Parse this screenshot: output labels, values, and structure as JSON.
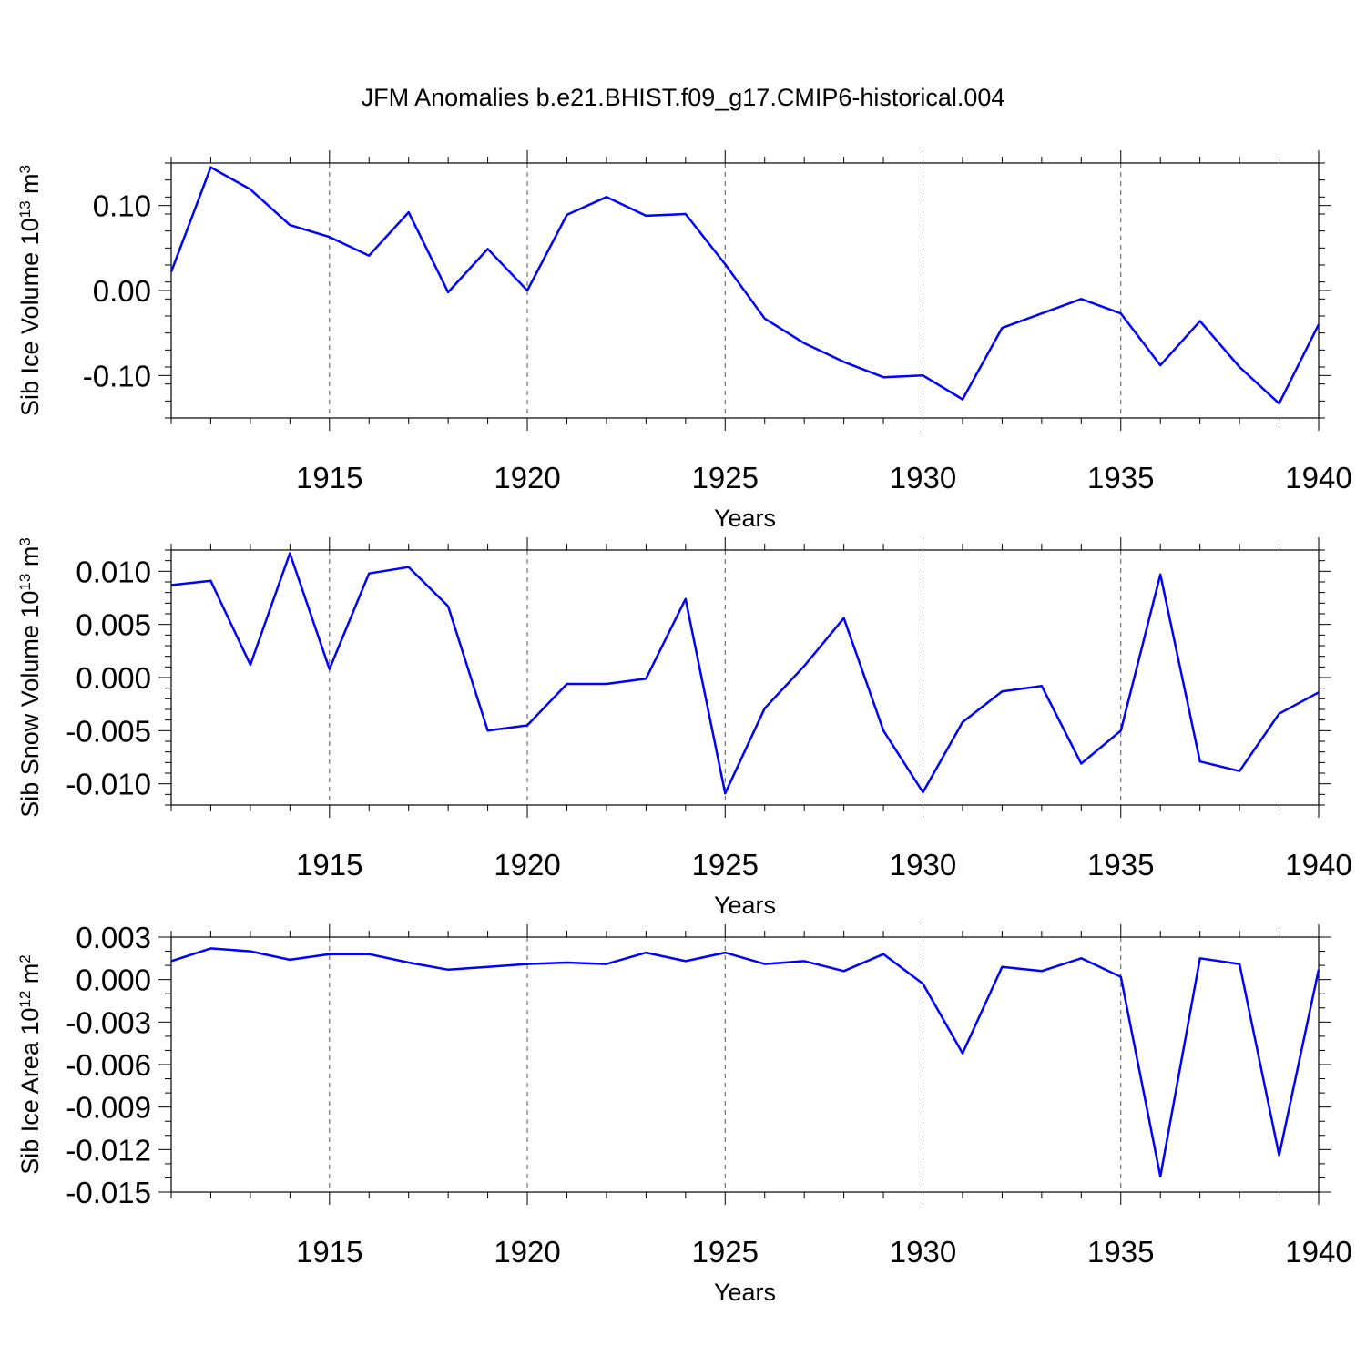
{
  "chart_data": {
    "title": "JFM Anomalies b.e21.BHIST.f09_g17.CMIP6-historical.004",
    "colors": {
      "line": "#0000ff",
      "frame": "#000000",
      "grid": "#555555"
    },
    "panels": [
      {
        "type": "line",
        "ylabel_main": "Sib Ice Volume 10",
        "ylabel_exp": "13",
        "ylabel_unit": " m",
        "ylabel_unit_exp": "3",
        "xlabel": "Years",
        "xlim": [
          1911,
          1940
        ],
        "ylim": [
          -0.15,
          0.15
        ],
        "yticks": [
          -0.1,
          0.0,
          0.1
        ],
        "ytick_labels": [
          "-0.10",
          "0.00",
          "0.10"
        ],
        "yminor_step": 0.02,
        "xticks": [
          1915,
          1920,
          1925,
          1930,
          1935,
          1940
        ],
        "xtick_labels": [
          "1915",
          "1920",
          "1925",
          "1930",
          "1935",
          "1940"
        ],
        "x": [
          1911,
          1912,
          1913,
          1914,
          1915,
          1916,
          1917,
          1918,
          1919,
          1920,
          1921,
          1922,
          1923,
          1924,
          1925,
          1926,
          1927,
          1928,
          1929,
          1930,
          1931,
          1932,
          1933,
          1934,
          1935,
          1936,
          1937,
          1938,
          1939,
          1940
        ],
        "values": [
          0.022,
          0.145,
          0.119,
          0.077,
          0.063,
          0.041,
          0.092,
          -0.002,
          0.049,
          0.0,
          0.089,
          0.11,
          0.088,
          0.09,
          0.031,
          -0.033,
          -0.062,
          -0.084,
          -0.102,
          -0.1,
          -0.128,
          -0.044,
          -0.027,
          -0.01,
          -0.027,
          -0.088,
          -0.036,
          -0.09,
          -0.133,
          -0.04
        ]
      },
      {
        "type": "line",
        "ylabel_main": "Sib Snow Volume 10",
        "ylabel_exp": "13",
        "ylabel_unit": " m",
        "ylabel_unit_exp": "3",
        "xlabel": "Years",
        "xlim": [
          1911,
          1940
        ],
        "ylim": [
          -0.012,
          0.012
        ],
        "yticks": [
          -0.01,
          -0.005,
          0.0,
          0.005,
          0.01
        ],
        "ytick_labels": [
          "-0.010",
          "-0.005",
          "0.000",
          "0.005",
          "0.010"
        ],
        "yminor_step": 0.001,
        "xticks": [
          1915,
          1920,
          1925,
          1930,
          1935,
          1940
        ],
        "xtick_labels": [
          "1915",
          "1920",
          "1925",
          "1930",
          "1935",
          "1940"
        ],
        "x": [
          1911,
          1912,
          1913,
          1914,
          1915,
          1916,
          1917,
          1918,
          1919,
          1920,
          1921,
          1922,
          1923,
          1924,
          1925,
          1926,
          1927,
          1928,
          1929,
          1930,
          1931,
          1932,
          1933,
          1934,
          1935,
          1936,
          1937,
          1938,
          1939,
          1940
        ],
        "values": [
          0.0087,
          0.0091,
          0.0012,
          0.0117,
          0.0008,
          0.0098,
          0.0104,
          0.0067,
          -0.005,
          -0.0045,
          -0.0006,
          -0.0006,
          -0.0001,
          0.0074,
          -0.0109,
          -0.0029,
          0.0011,
          0.0056,
          -0.005,
          -0.0108,
          -0.0042,
          -0.0013,
          -0.0008,
          -0.0081,
          -0.005,
          0.0097,
          -0.0079,
          -0.0088,
          -0.0034,
          -0.0014
        ]
      },
      {
        "type": "line",
        "ylabel_main": "Sib Ice Area 10",
        "ylabel_exp": "12",
        "ylabel_unit": " m",
        "ylabel_unit_exp": "2",
        "xlabel": "Years",
        "xlim": [
          1911,
          1940
        ],
        "ylim": [
          -0.015,
          0.003
        ],
        "yticks": [
          -0.015,
          -0.012,
          -0.009,
          -0.006,
          -0.003,
          0.0,
          0.003
        ],
        "ytick_labels": [
          "-0.015",
          "-0.012",
          "-0.009",
          "-0.006",
          "-0.003",
          "0.000",
          "0.003"
        ],
        "yminor_step": 0.001,
        "xticks": [
          1915,
          1920,
          1925,
          1930,
          1935,
          1940
        ],
        "xtick_labels": [
          "1915",
          "1920",
          "1925",
          "1930",
          "1935",
          "1940"
        ],
        "x": [
          1911,
          1912,
          1913,
          1914,
          1915,
          1916,
          1917,
          1918,
          1919,
          1920,
          1921,
          1922,
          1923,
          1924,
          1925,
          1926,
          1927,
          1928,
          1929,
          1930,
          1931,
          1932,
          1933,
          1934,
          1935,
          1936,
          1937,
          1938,
          1939,
          1940
        ],
        "values": [
          0.0013,
          0.0022,
          0.002,
          0.0014,
          0.0018,
          0.0018,
          0.0012,
          0.0007,
          0.0009,
          0.0011,
          0.0012,
          0.0011,
          0.0019,
          0.0013,
          0.0019,
          0.0011,
          0.0013,
          0.0006,
          0.0018,
          -0.0003,
          -0.0052,
          0.0009,
          0.0006,
          0.0015,
          0.0002,
          -0.0139,
          0.0015,
          0.0011,
          -0.0124,
          0.0007
        ]
      }
    ]
  }
}
